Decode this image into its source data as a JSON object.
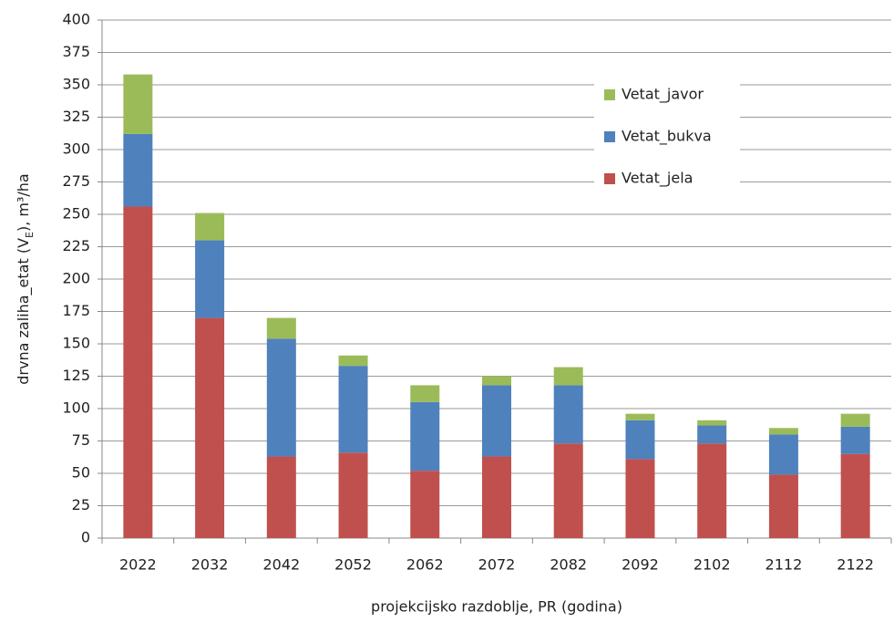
{
  "chart_data": {
    "type": "stacked-bar",
    "xlabel": "projekcijsko razdoblje, PR (godina)",
    "ylabel": [
      "drvna zaliha_etat (V",
      "E",
      "), m³/ha"
    ],
    "categories": [
      "2022",
      "2032",
      "2042",
      "2052",
      "2062",
      "2072",
      "2082",
      "2092",
      "2102",
      "2112",
      "2122"
    ],
    "series": [
      {
        "name": "Vetat_jela",
        "color": "#c0504d",
        "values": [
          256,
          170,
          63,
          66,
          52,
          63,
          73,
          61,
          73,
          49,
          65
        ]
      },
      {
        "name": "Vetat_bukva",
        "color": "#4f81bd",
        "values": [
          56,
          60,
          91,
          67,
          53,
          55,
          45,
          30,
          14,
          31,
          21
        ]
      },
      {
        "name": "Vetat_javor",
        "color": "#9bbb59",
        "values": [
          46,
          21,
          16,
          8,
          13,
          7,
          14,
          5,
          4,
          5,
          10
        ]
      }
    ],
    "ylim": [
      0,
      400
    ],
    "yticks": [
      0,
      25,
      50,
      75,
      100,
      125,
      150,
      175,
      200,
      225,
      250,
      275,
      300,
      325,
      350,
      375,
      400
    ],
    "grid": true,
    "legend": "right"
  }
}
